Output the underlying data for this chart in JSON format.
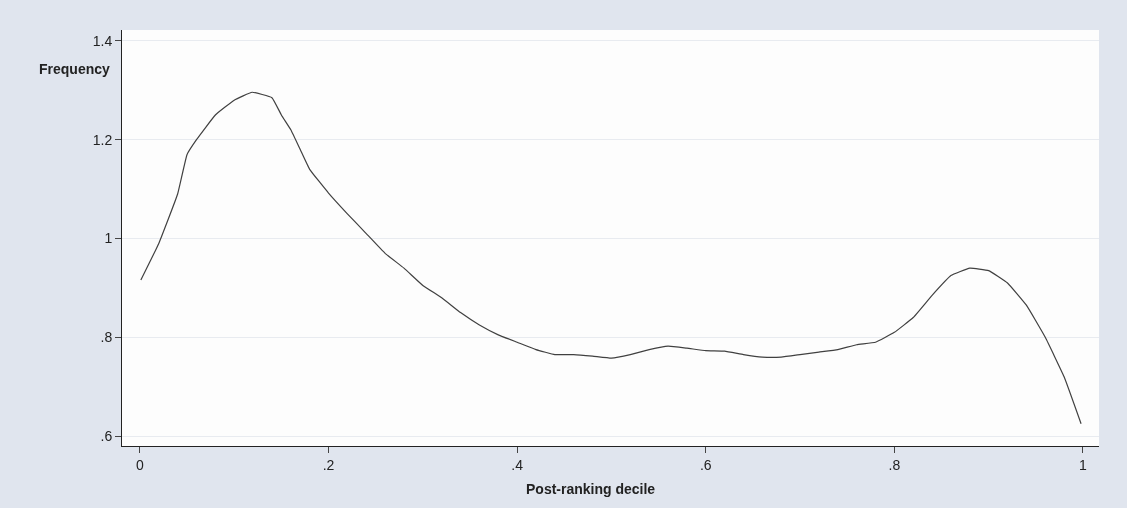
{
  "chart_data": {
    "type": "line",
    "xlabel": "Post-ranking decile",
    "ylabel": "Frequency",
    "x": [
      0.001,
      0.02,
      0.04,
      0.05,
      0.06,
      0.08,
      0.1,
      0.119,
      0.14,
      0.15,
      0.16,
      0.17,
      0.18,
      0.2,
      0.22,
      0.24,
      0.26,
      0.28,
      0.3,
      0.32,
      0.34,
      0.36,
      0.38,
      0.4,
      0.42,
      0.44,
      0.46,
      0.48,
      0.5,
      0.52,
      0.54,
      0.56,
      0.58,
      0.6,
      0.62,
      0.64,
      0.66,
      0.68,
      0.7,
      0.72,
      0.74,
      0.76,
      0.78,
      0.8,
      0.82,
      0.84,
      0.86,
      0.88,
      0.9,
      0.92,
      0.94,
      0.96,
      0.98,
      0.998
    ],
    "series": [
      {
        "color": "#404040",
        "values": [
          0.916,
          0.99,
          1.09,
          1.17,
          1.2,
          1.25,
          1.28,
          1.296,
          1.285,
          1.25,
          1.22,
          1.18,
          1.14,
          1.092,
          1.05,
          1.01,
          0.97,
          0.94,
          0.905,
          0.88,
          0.85,
          0.825,
          0.805,
          0.79,
          0.775,
          0.765,
          0.765,
          0.762,
          0.758,
          0.765,
          0.775,
          0.782,
          0.778,
          0.773,
          0.772,
          0.765,
          0.76,
          0.76,
          0.765,
          0.77,
          0.775,
          0.785,
          0.79,
          0.81,
          0.84,
          0.885,
          0.925,
          0.94,
          0.935,
          0.91,
          0.865,
          0.8,
          0.72,
          0.625
        ]
      }
    ],
    "xlim": [
      -0.019,
      1.017
    ],
    "ylim": [
      0.58,
      1.422
    ],
    "xticks": [
      0,
      {
        "value": 0.2,
        "label": ".2"
      },
      {
        "value": 0.4,
        "label": ".4"
      },
      {
        "value": 0.6,
        "label": ".6"
      },
      {
        "value": 0.8,
        "label": ".8"
      },
      1
    ],
    "yticks": [
      {
        "value": 0.6,
        "label": ".6"
      },
      {
        "value": 0.8,
        "label": ".8"
      },
      1,
      1.2,
      1.4
    ],
    "grid": "y",
    "legend": false,
    "marker": "none",
    "line_style": "solid"
  }
}
